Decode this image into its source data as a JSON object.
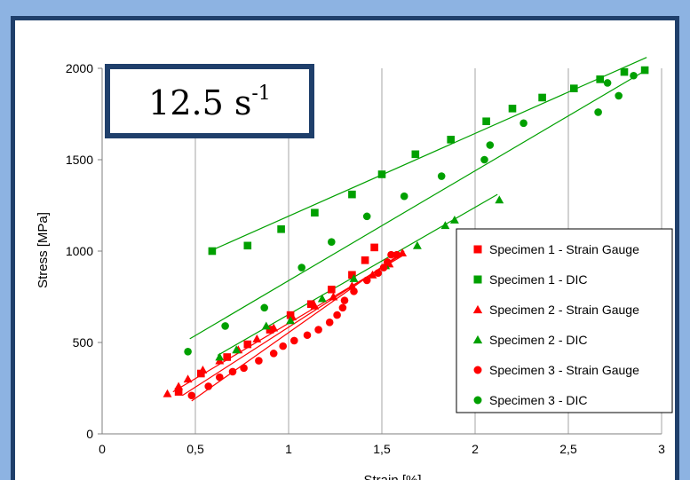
{
  "chart_data": {
    "type": "scatter",
    "title": "",
    "rate_label": {
      "base": "12.5 s",
      "exp": "-1"
    },
    "xlabel": "Strain [%]",
    "ylabel": "Stress [MPa]",
    "xlim": [
      0,
      3
    ],
    "ylim": [
      0,
      2000
    ],
    "xticks": [
      0,
      0.5,
      1,
      1.5,
      2,
      2.5,
      3
    ],
    "xtick_labels": [
      "0",
      "0,5",
      "1",
      "1,5",
      "2",
      "2,5",
      "3"
    ],
    "yticks": [
      0,
      500,
      1000,
      1500,
      2000
    ],
    "ytick_labels": [
      "0",
      "500",
      "1000",
      "1500",
      "2000"
    ],
    "grid": "vertical",
    "legend_position": "right",
    "series": [
      {
        "name": "Specimen 1 - Strain Gauge",
        "color": "#ff0000",
        "marker": "square",
        "x": [
          0.41,
          0.53,
          0.67,
          0.78,
          0.9,
          1.01,
          1.12,
          1.23,
          1.34,
          1.41,
          1.46
        ],
        "y": [
          230,
          330,
          420,
          490,
          570,
          650,
          710,
          790,
          870,
          950,
          1020
        ],
        "trend": [
          [
            0.43,
            210
          ],
          [
            1.62,
            990
          ]
        ]
      },
      {
        "name": "Specimen 1 - DIC",
        "color": "#00a000",
        "marker": "square",
        "x": [
          0.59,
          0.78,
          0.96,
          1.14,
          1.34,
          1.5,
          1.68,
          1.87,
          2.06,
          2.2,
          2.36,
          2.53,
          2.67,
          2.8,
          2.91
        ],
        "y": [
          1000,
          1030,
          1120,
          1210,
          1310,
          1420,
          1530,
          1610,
          1710,
          1780,
          1840,
          1890,
          1940,
          1980,
          1990
        ],
        "trend": [
          [
            0.6,
            1010
          ],
          [
            2.92,
            2060
          ]
        ]
      },
      {
        "name": "Specimen 2 - Strain Gauge",
        "color": "#ff0000",
        "marker": "triangle",
        "x": [
          0.35,
          0.41,
          0.46,
          0.54,
          0.63,
          0.73,
          0.83,
          0.92,
          1.02,
          1.14,
          1.24,
          1.34,
          1.45,
          1.54,
          1.61
        ],
        "y": [
          220,
          260,
          300,
          350,
          400,
          460,
          520,
          580,
          640,
          700,
          750,
          810,
          870,
          930,
          990
        ],
        "trend": [
          [
            0.38,
            230
          ],
          [
            1.62,
            980
          ]
        ]
      },
      {
        "name": "Specimen 2 - DIC",
        "color": "#00a000",
        "marker": "triangle",
        "x": [
          0.63,
          0.72,
          0.88,
          1.01,
          1.18,
          1.35,
          1.52,
          1.69,
          1.84,
          1.89,
          2.13
        ],
        "y": [
          420,
          460,
          590,
          620,
          740,
          850,
          920,
          1030,
          1140,
          1170,
          1280
        ],
        "trend": [
          [
            0.62,
            430
          ],
          [
            2.12,
            1310
          ]
        ]
      },
      {
        "name": "Specimen 3 - Strain Gauge",
        "color": "#ff0000",
        "marker": "circle",
        "x": [
          0.48,
          0.57,
          0.63,
          0.7,
          0.76,
          0.84,
          0.92,
          0.97,
          1.03,
          1.1,
          1.16,
          1.22,
          1.26,
          1.29,
          1.3,
          1.35,
          1.42,
          1.48,
          1.51,
          1.53,
          1.55,
          1.58
        ],
        "y": [
          210,
          260,
          310,
          340,
          360,
          400,
          440,
          480,
          510,
          540,
          570,
          610,
          650,
          690,
          730,
          780,
          840,
          880,
          910,
          940,
          980,
          980
        ],
        "trend": [
          [
            0.48,
            180
          ],
          [
            1.62,
            1000
          ]
        ]
      },
      {
        "name": "Specimen 3 - DIC",
        "color": "#00a000",
        "marker": "circle",
        "x": [
          0.46,
          0.66,
          0.87,
          1.07,
          1.23,
          1.42,
          1.62,
          1.82,
          2.05,
          2.08,
          2.26,
          2.66,
          2.71,
          2.77,
          2.85
        ],
        "y": [
          450,
          590,
          690,
          910,
          1050,
          1190,
          1300,
          1410,
          1500,
          1580,
          1700,
          1760,
          1920,
          1850,
          1960
        ],
        "trend": [
          [
            0.47,
            520
          ],
          [
            2.9,
            1980
          ]
        ]
      }
    ]
  }
}
